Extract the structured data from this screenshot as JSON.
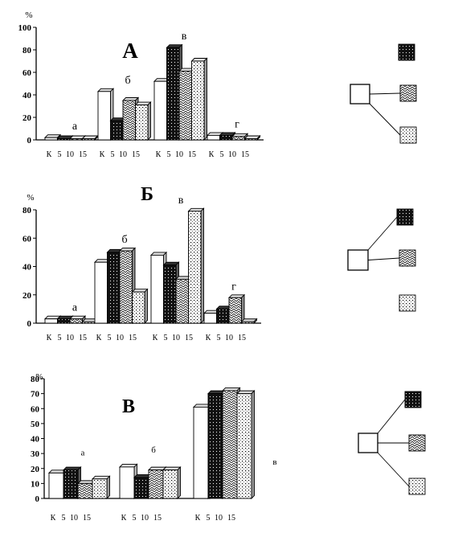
{
  "chart_data": [
    {
      "type": "bar",
      "title": "А",
      "ylabel": "%",
      "ylim": [
        0,
        100
      ],
      "yticks": [
        "0",
        "20",
        "40",
        "60",
        "80",
        "100"
      ],
      "category_labels": [
        "а",
        "б",
        "в",
        "г"
      ],
      "series_ticks": [
        "К",
        "5",
        "10",
        "15"
      ],
      "series_patterns": [
        "white",
        "dots-dense",
        "herringbone",
        "dots-sparse"
      ],
      "groups": [
        [
          2,
          1,
          1,
          1
        ],
        [
          43,
          17,
          35,
          31
        ],
        [
          52,
          82,
          61,
          70
        ],
        [
          4,
          4,
          3,
          1
        ]
      ],
      "diagram_links": [
        "herringbone",
        "dots-sparse"
      ]
    },
    {
      "type": "bar",
      "title": "Б",
      "ylabel": "%",
      "ylim": [
        0,
        80
      ],
      "yticks": [
        "0",
        "20",
        "40",
        "60",
        "80"
      ],
      "category_labels": [
        "а",
        "б",
        "в",
        "г"
      ],
      "series_ticks": [
        "К",
        "5",
        "10",
        "15"
      ],
      "series_patterns": [
        "white",
        "dots-dense",
        "herringbone",
        "dots-sparse"
      ],
      "groups": [
        [
          3,
          3,
          3,
          1
        ],
        [
          43,
          50,
          51,
          22
        ],
        [
          48,
          41,
          31,
          79
        ],
        [
          7,
          10,
          18,
          1
        ]
      ],
      "diagram_links": [
        "dots-dense",
        "herringbone"
      ]
    },
    {
      "type": "bar",
      "title": "В",
      "ylabel": "%",
      "ylim": [
        0,
        80
      ],
      "yticks": [
        "0",
        "10",
        "20",
        "30",
        "40",
        "50",
        "60",
        "70",
        "80"
      ],
      "category_labels": [
        "а",
        "б",
        "в"
      ],
      "series_ticks": [
        "К",
        "5",
        "10",
        "15"
      ],
      "series_patterns": [
        "white",
        "dots-dense",
        "herringbone",
        "dots-sparse"
      ],
      "groups": [
        [
          17,
          19,
          10,
          13
        ],
        [
          21,
          14,
          19,
          19
        ],
        [
          61,
          70,
          72,
          70
        ]
      ],
      "diagram_links": [
        "dots-dense",
        "herringbone",
        "dots-sparse"
      ]
    }
  ]
}
